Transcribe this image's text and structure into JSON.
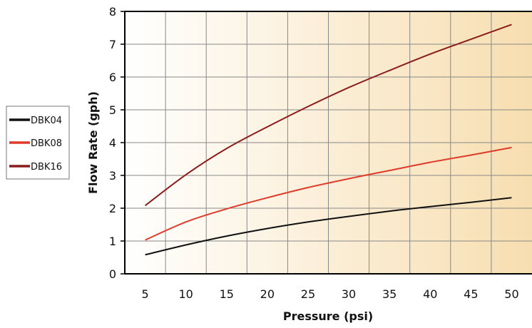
{
  "chart_data": {
    "type": "line",
    "xlabel": "Pressure (psi)",
    "ylabel": "Flow Rate (gph)",
    "xlim": [
      2.5,
      52.5
    ],
    "ylim": [
      0,
      8
    ],
    "x_ticks": [
      "5",
      "10",
      "15",
      "20",
      "25",
      "30",
      "35",
      "40",
      "45",
      "50"
    ],
    "y_ticks": [
      "0",
      "1",
      "2",
      "3",
      "4",
      "5",
      "6",
      "7",
      "8"
    ],
    "grid": true,
    "background_gradient": [
      "#ffffff",
      "#f7deb0"
    ],
    "legend_position": "left",
    "x": [
      5,
      10,
      15,
      20,
      25,
      30,
      35,
      40,
      45,
      50
    ],
    "series": [
      {
        "name": "DBK04",
        "color": "#111111",
        "values": [
          0.58,
          0.88,
          1.15,
          1.38,
          1.58,
          1.75,
          1.91,
          2.05,
          2.18,
          2.32
        ]
      },
      {
        "name": "DBK08",
        "color": "#e03a2a",
        "values": [
          1.03,
          1.58,
          1.98,
          2.32,
          2.63,
          2.9,
          3.15,
          3.4,
          3.62,
          3.85
        ]
      },
      {
        "name": "DBK16",
        "color": "#8b1c1c",
        "values": [
          2.08,
          3.02,
          3.82,
          4.48,
          5.1,
          5.68,
          6.2,
          6.7,
          7.15,
          7.6
        ]
      }
    ]
  }
}
